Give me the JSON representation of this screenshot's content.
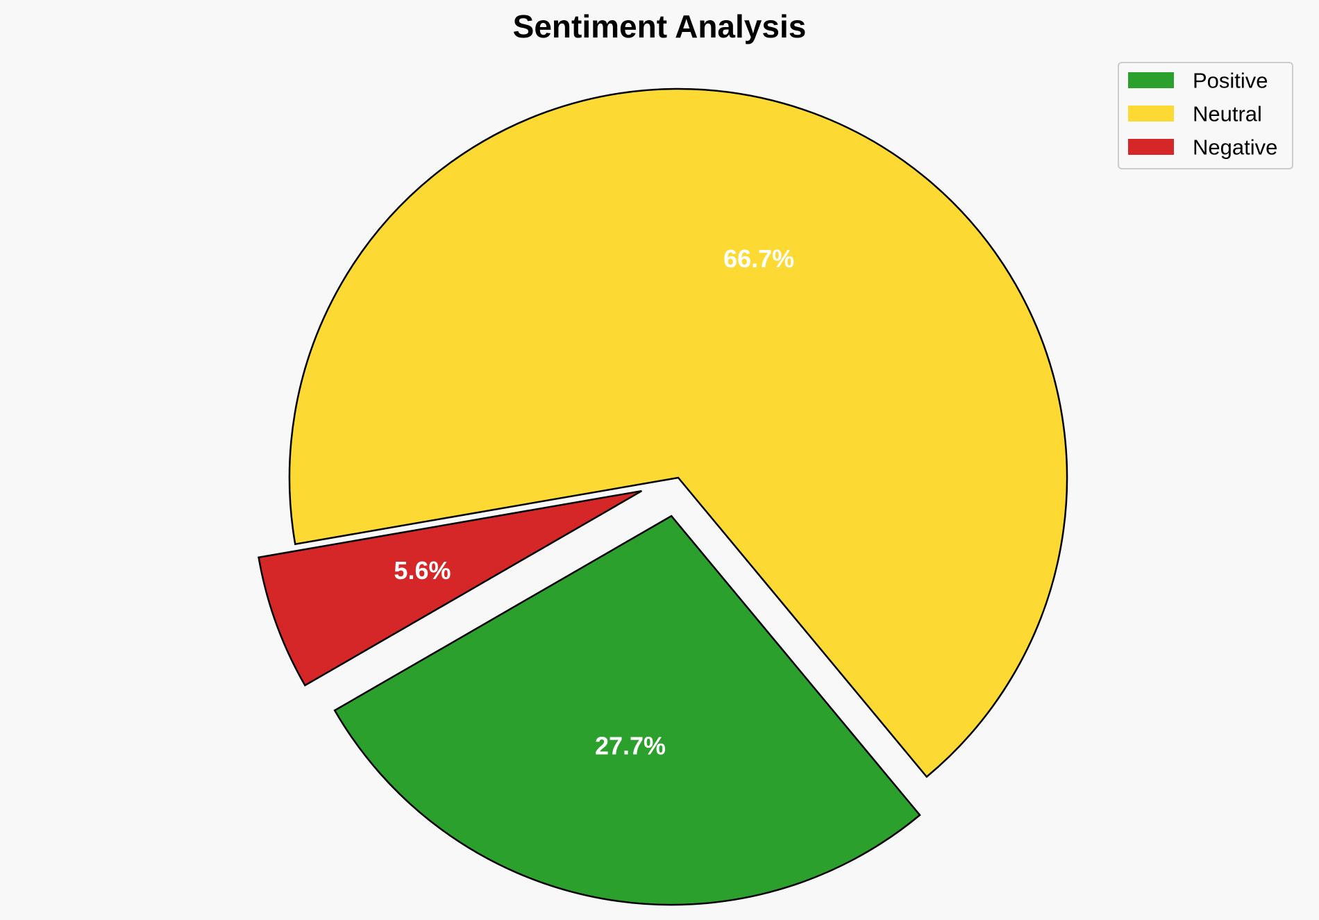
{
  "chart_data": {
    "type": "pie",
    "title": "Sentiment Analysis",
    "categories": [
      "Positive",
      "Neutral",
      "Negative"
    ],
    "values": [
      27.7,
      66.7,
      5.6
    ],
    "labels": [
      "27.7%",
      "66.7%",
      "5.6%"
    ],
    "colors": [
      "#2ca02c",
      "#fdd933",
      "#d62728"
    ],
    "exploded": [
      true,
      false,
      true
    ],
    "edge_color": "#000000",
    "legend_position": "top-right"
  }
}
